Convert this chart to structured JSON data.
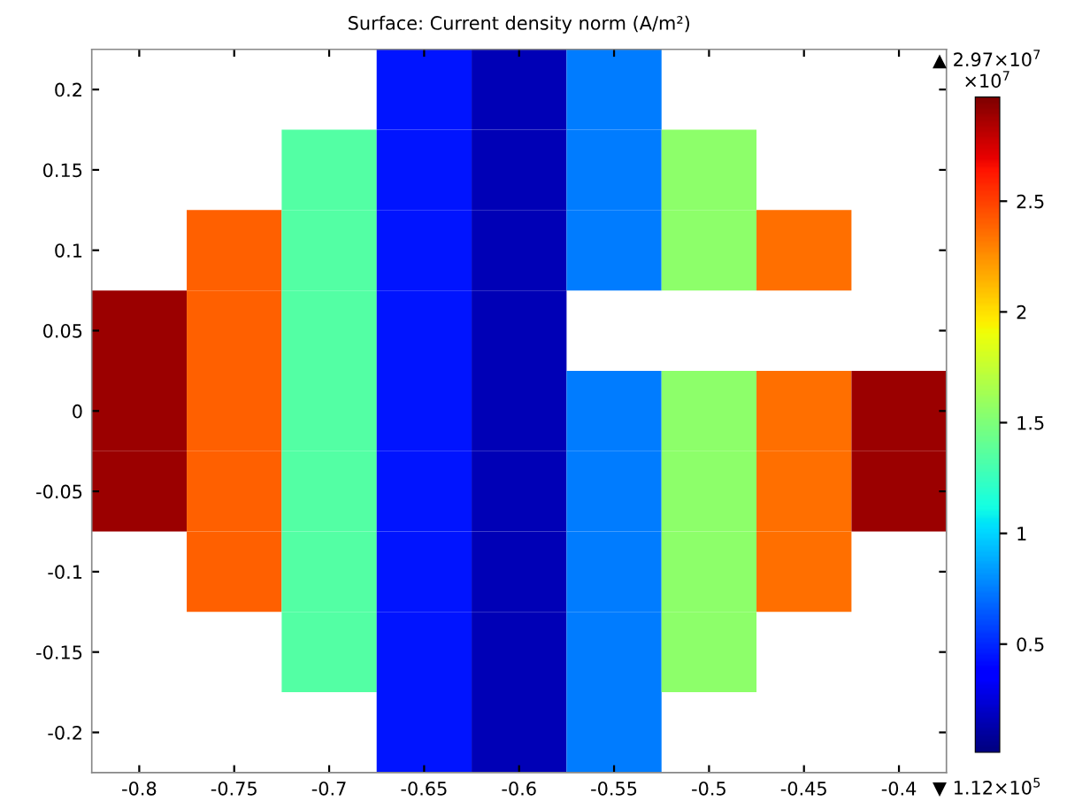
{
  "chart_data": {
    "type": "heatmap",
    "title": "Surface: Current density norm (A/m²)",
    "categories": [
      "-0.8",
      "-0.75",
      "-0.7",
      "-0.65",
      "-0.6",
      "-0.55",
      "-0.5",
      "-0.45",
      "-0.4"
    ],
    "y_categories": [
      "0.2",
      "0.15",
      "0.1",
      "0.05",
      "0",
      "-0.05",
      "-0.1",
      "-0.15",
      "-0.2"
    ],
    "clim": [
      0.0112,
      2.97
    ],
    "cticks": [
      0.5,
      1,
      1.5,
      2,
      2.5
    ],
    "annotations": [
      "▲ 2.97×10$^{7}$",
      "×10$^{7}$",
      "▼ 1.12×10$^{5}$"
    ],
    "cells": [
      [
        null,
        null,
        null,
        0.45,
        0.15,
        0.75,
        null,
        null,
        null
      ],
      [
        null,
        null,
        1.35,
        0.45,
        0.15,
        0.75,
        1.55,
        null,
        null
      ],
      [
        null,
        2.4,
        1.35,
        0.45,
        0.15,
        0.75,
        1.55,
        2.35,
        null
      ],
      [
        2.9,
        2.4,
        1.35,
        0.45,
        0.15,
        null,
        null,
        null,
        null
      ],
      [
        2.9,
        2.4,
        1.35,
        0.45,
        0.15,
        0.75,
        1.55,
        2.35,
        2.9
      ],
      [
        2.9,
        2.4,
        1.35,
        0.45,
        0.15,
        0.75,
        1.55,
        2.35,
        2.9
      ],
      [
        null,
        2.4,
        1.35,
        0.45,
        0.15,
        0.75,
        1.55,
        2.35,
        null
      ],
      [
        null,
        null,
        1.35,
        0.45,
        0.15,
        0.75,
        1.55,
        null,
        null
      ],
      [
        null,
        null,
        null,
        0.45,
        0.15,
        0.75,
        null,
        null,
        null
      ]
    ]
  }
}
